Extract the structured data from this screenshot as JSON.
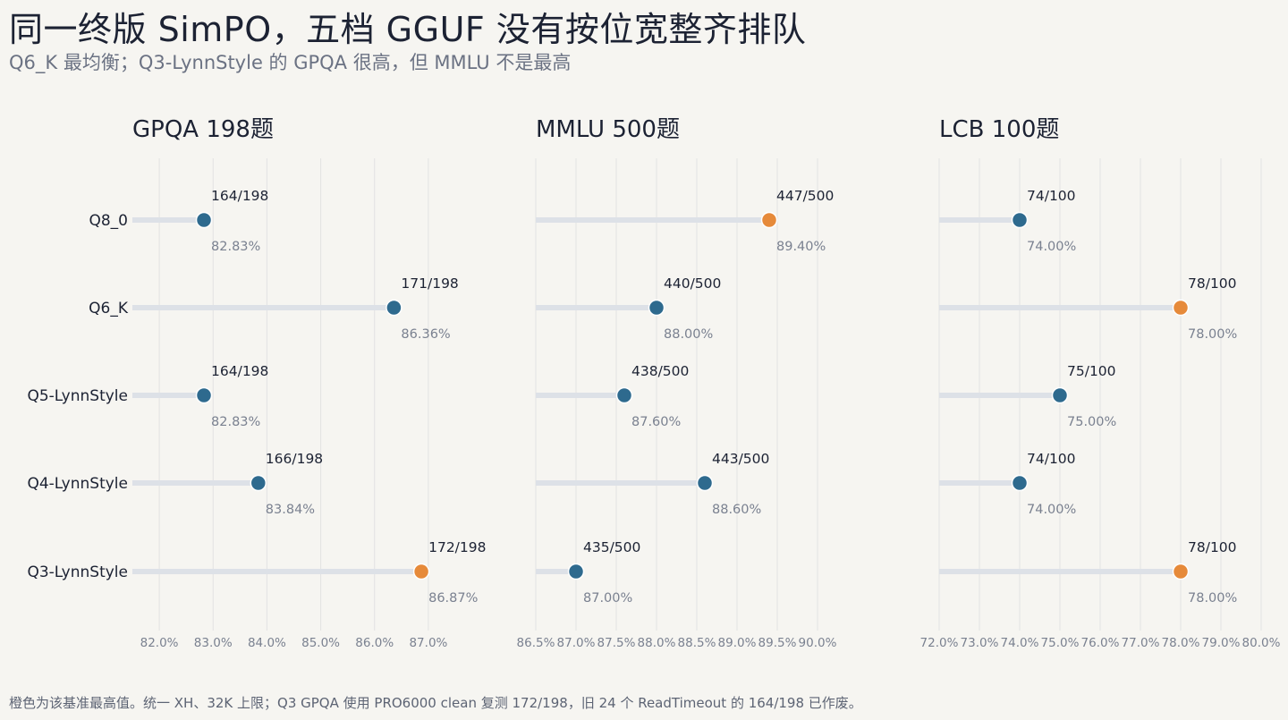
{
  "title": "同一终版 SimPO，五档 GGUF 没有按位宽整齐排队",
  "subtitle": "Q6_K 最均衡；Q3-LynnStyle 的 GPQA 很高，但 MMLU 不是最高",
  "footnote": "橙色为该基准最高值。统一 XH、32K 上限；Q3 GPQA 使用 PRO6000 clean 复测 172/198，旧 24 个 ReadTimeout 的 164/198 已作废。",
  "colors": {
    "background": "#f6f5f1",
    "dot": "#2e6a8e",
    "highlight": "#e68a3a",
    "track": "#dde1e7",
    "grid": "#e2e2e2"
  },
  "chart_data": [
    {
      "type": "dot",
      "title": "GPQA 198题",
      "categories": [
        "Q8_0",
        "Q6_K",
        "Q5-LynnStyle",
        "Q4-LynnStyle",
        "Q3-LynnStyle"
      ],
      "values": [
        82.83,
        86.36,
        82.83,
        83.84,
        86.87
      ],
      "value_labels": [
        "82.83%",
        "86.36%",
        "82.83%",
        "83.84%",
        "86.87%"
      ],
      "count_labels": [
        "164/198",
        "171/198",
        "164/198",
        "166/198",
        "172/198"
      ],
      "highlight_index": 4,
      "xlim": [
        81.5,
        87.5
      ],
      "xticks": [
        82.0,
        83.0,
        84.0,
        85.0,
        86.0,
        87.0
      ],
      "xtick_labels": [
        "82.0%",
        "83.0%",
        "84.0%",
        "85.0%",
        "86.0%",
        "87.0%"
      ]
    },
    {
      "type": "dot",
      "title": "MMLU 500题",
      "categories": [
        "Q8_0",
        "Q6_K",
        "Q5-LynnStyle",
        "Q4-LynnStyle",
        "Q3-LynnStyle"
      ],
      "values": [
        89.4,
        88.0,
        87.6,
        88.6,
        87.0
      ],
      "value_labels": [
        "89.40%",
        "88.00%",
        "87.60%",
        "88.60%",
        "87.00%"
      ],
      "count_labels": [
        "447/500",
        "440/500",
        "438/500",
        "443/500",
        "435/500"
      ],
      "highlight_index": 0,
      "xlim": [
        86.5,
        90.5
      ],
      "xticks": [
        86.5,
        87.0,
        87.5,
        88.0,
        88.5,
        89.0,
        89.5,
        90.0
      ],
      "xtick_labels": [
        "86.5%",
        "87.0%",
        "87.5%",
        "88.0%",
        "88.5%",
        "89.0%",
        "89.5%",
        "90.0%"
      ]
    },
    {
      "type": "dot",
      "title": "LCB 100题",
      "categories": [
        "Q8_0",
        "Q6_K",
        "Q5-LynnStyle",
        "Q4-LynnStyle",
        "Q3-LynnStyle"
      ],
      "values": [
        74.0,
        78.0,
        75.0,
        74.0,
        78.0
      ],
      "value_labels": [
        "74.00%",
        "78.00%",
        "75.00%",
        "74.00%",
        "78.00%"
      ],
      "count_labels": [
        "74/100",
        "78/100",
        "75/100",
        "74/100",
        "78/100"
      ],
      "highlight_index": [
        1,
        4
      ],
      "xlim": [
        72.0,
        80.0
      ],
      "xticks": [
        72.0,
        73.0,
        74.0,
        75.0,
        76.0,
        77.0,
        78.0,
        79.0,
        80.0
      ],
      "xtick_labels": [
        "72.0%",
        "73.0%",
        "74.0%",
        "75.0%",
        "76.0%",
        "77.0%",
        "78.0%",
        "79.0%",
        "80.0%"
      ]
    }
  ]
}
